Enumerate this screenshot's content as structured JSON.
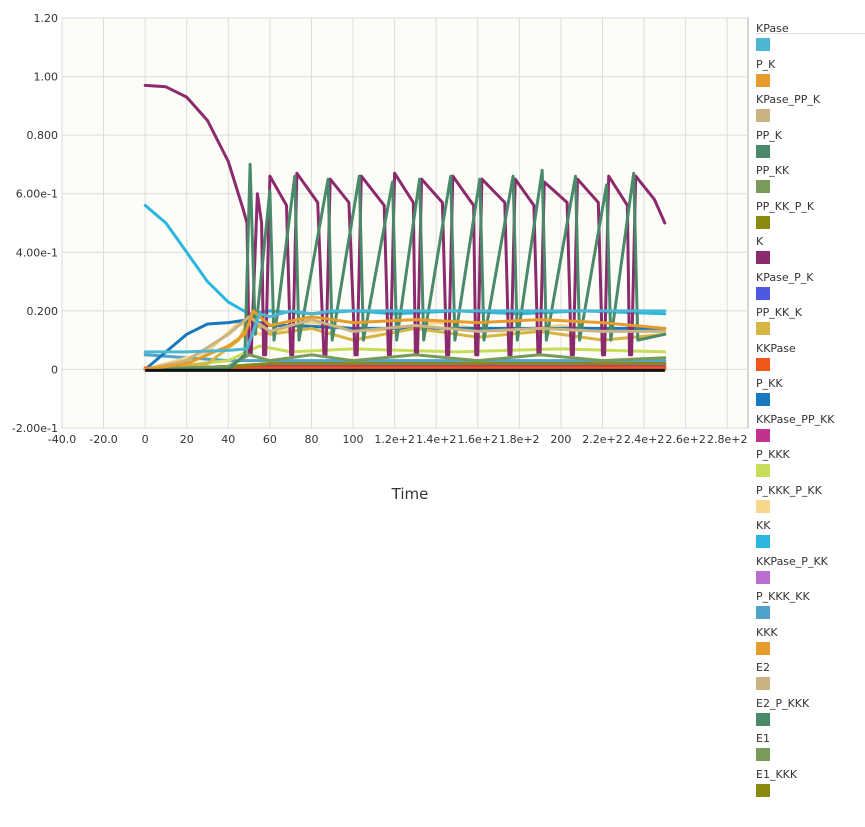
{
  "chart_data": {
    "type": "line",
    "xlabel": "Time",
    "ylabel": "",
    "xlim": [
      -40,
      290
    ],
    "ylim": [
      -0.2,
      1.2
    ],
    "grid": true,
    "legend_position": "right",
    "plot_background": "#fdfdf7",
    "xticks": [
      {
        "v": -40,
        "label": "-40.0"
      },
      {
        "v": -20,
        "label": "-20.0"
      },
      {
        "v": 0,
        "label": "0"
      },
      {
        "v": 20,
        "label": "20"
      },
      {
        "v": 40,
        "label": "40"
      },
      {
        "v": 60,
        "label": "60"
      },
      {
        "v": 80,
        "label": "80"
      },
      {
        "v": 100,
        "label": "100"
      },
      {
        "v": 120,
        "label": "1.2e+2"
      },
      {
        "v": 140,
        "label": "1.4e+2"
      },
      {
        "v": 160,
        "label": "1.6e+2"
      },
      {
        "v": 180,
        "label": "1.8e+2"
      },
      {
        "v": 200,
        "label": "200"
      },
      {
        "v": 220,
        "label": "2.2e+2"
      },
      {
        "v": 240,
        "label": "2.4e+2"
      },
      {
        "v": 260,
        "label": "2.6e+2"
      },
      {
        "v": 280,
        "label": "2.8e+2"
      }
    ],
    "yticks": [
      {
        "v": 1.2,
        "label": "1.20"
      },
      {
        "v": 1.0,
        "label": "1.00"
      },
      {
        "v": 0.8,
        "label": "0.800"
      },
      {
        "v": 0.6,
        "label": "6.00e-1"
      },
      {
        "v": 0.4,
        "label": "4.00e-1"
      },
      {
        "v": 0.2,
        "label": "0.200"
      },
      {
        "v": 0,
        "label": "0"
      },
      {
        "v": -0.2,
        "label": "-2.00e-1"
      }
    ],
    "peaks": [
      50.5,
      60,
      72,
      88,
      103,
      119,
      132,
      147,
      161,
      177,
      191,
      207,
      222,
      235
    ],
    "series": [
      {
        "name": "KPase",
        "color": "#4bb7d3",
        "values": [
          [
            0,
            0.06
          ],
          [
            20,
            0.06
          ],
          [
            40,
            0.065
          ],
          [
            49,
            0.07
          ],
          [
            55,
            0.19
          ],
          [
            60,
            0.18
          ],
          [
            70,
            0.2
          ],
          [
            80,
            0.19
          ],
          [
            90,
            0.2
          ],
          [
            100,
            0.2
          ],
          [
            120,
            0.2
          ],
          [
            150,
            0.2
          ],
          [
            180,
            0.2
          ],
          [
            210,
            0.2
          ],
          [
            250,
            0.2
          ]
        ]
      },
      {
        "name": "P_K",
        "color": "#e69c2a",
        "values": [
          [
            0,
            0
          ],
          [
            20,
            0.02
          ],
          [
            40,
            0.08
          ],
          [
            48,
            0.12
          ],
          [
            52,
            0.2
          ],
          [
            60,
            0.15
          ],
          [
            80,
            0.18
          ],
          [
            100,
            0.16
          ],
          [
            130,
            0.17
          ],
          [
            160,
            0.16
          ],
          [
            190,
            0.17
          ],
          [
            220,
            0.16
          ],
          [
            250,
            0.14
          ]
        ]
      },
      {
        "name": "KPase_PP_K",
        "color": "#c9b383",
        "values": [
          [
            0,
            0
          ],
          [
            20,
            0.03
          ],
          [
            40,
            0.12
          ],
          [
            50,
            0.18
          ],
          [
            60,
            0.13
          ],
          [
            80,
            0.17
          ],
          [
            100,
            0.13
          ],
          [
            130,
            0.15
          ],
          [
            160,
            0.13
          ],
          [
            190,
            0.14
          ],
          [
            220,
            0.13
          ],
          [
            250,
            0.13
          ]
        ]
      },
      {
        "name": "PP_K",
        "color": "#4a8a6a",
        "values": [
          [
            0,
            0
          ],
          [
            40,
            0
          ],
          [
            48,
            0.05
          ],
          [
            50.5,
            0.7
          ],
          [
            53,
            0.12
          ],
          [
            60,
            0.61
          ],
          [
            62,
            0.1
          ],
          [
            72,
            0.66
          ],
          [
            74,
            0.1
          ],
          [
            88,
            0.65
          ],
          [
            90,
            0.1
          ],
          [
            103,
            0.66
          ],
          [
            105,
            0.1
          ],
          [
            119,
            0.64
          ],
          [
            121,
            0.1
          ],
          [
            132,
            0.65
          ],
          [
            134,
            0.1
          ],
          [
            147,
            0.66
          ],
          [
            149,
            0.1
          ],
          [
            161,
            0.65
          ],
          [
            163,
            0.1
          ],
          [
            177,
            0.66
          ],
          [
            179,
            0.1
          ],
          [
            191,
            0.68
          ],
          [
            193,
            0.1
          ],
          [
            207,
            0.66
          ],
          [
            209,
            0.1
          ],
          [
            222,
            0.63
          ],
          [
            224,
            0.1
          ],
          [
            235,
            0.67
          ],
          [
            237,
            0.1
          ],
          [
            250,
            0.12
          ]
        ]
      },
      {
        "name": "PP_KK",
        "color": "#7a9a5a",
        "values": [
          [
            0,
            0
          ],
          [
            40,
            0.01
          ],
          [
            50,
            0.05
          ],
          [
            60,
            0.03
          ],
          [
            80,
            0.05
          ],
          [
            100,
            0.03
          ],
          [
            130,
            0.05
          ],
          [
            160,
            0.03
          ],
          [
            190,
            0.05
          ],
          [
            220,
            0.03
          ],
          [
            250,
            0.04
          ]
        ]
      },
      {
        "name": "PP_KK_P_K",
        "color": "#8a8a10",
        "values": [
          [
            0,
            0
          ],
          [
            40,
            0.01
          ],
          [
            60,
            0.02
          ],
          [
            100,
            0.02
          ],
          [
            150,
            0.02
          ],
          [
            200,
            0.02
          ],
          [
            250,
            0.02
          ]
        ]
      },
      {
        "name": "K",
        "color": "#8c2a6e",
        "values": [
          [
            0,
            0.97
          ],
          [
            10,
            0.965
          ],
          [
            20,
            0.93
          ],
          [
            30,
            0.85
          ],
          [
            40,
            0.71
          ],
          [
            47,
            0.55
          ],
          [
            49,
            0.5
          ],
          [
            50,
            0.05
          ],
          [
            51,
            0.05
          ],
          [
            54,
            0.6
          ],
          [
            56,
            0.5
          ],
          [
            57,
            0.05
          ],
          [
            58,
            0.05
          ],
          [
            60,
            0.66
          ],
          [
            68,
            0.56
          ],
          [
            70,
            0.05
          ],
          [
            71,
            0.05
          ],
          [
            73,
            0.67
          ],
          [
            83,
            0.57
          ],
          [
            86,
            0.05
          ],
          [
            87,
            0.05
          ],
          [
            89,
            0.65
          ],
          [
            98,
            0.57
          ],
          [
            101,
            0.05
          ],
          [
            102,
            0.05
          ],
          [
            104,
            0.66
          ],
          [
            115,
            0.56
          ],
          [
            117,
            0.05
          ],
          [
            118,
            0.05
          ],
          [
            120,
            0.67
          ],
          [
            129,
            0.57
          ],
          [
            130,
            0.05
          ],
          [
            131,
            0.05
          ],
          [
            133,
            0.65
          ],
          [
            143,
            0.57
          ],
          [
            145,
            0.05
          ],
          [
            146,
            0.05
          ],
          [
            148,
            0.66
          ],
          [
            158,
            0.56
          ],
          [
            159,
            0.05
          ],
          [
            160,
            0.05
          ],
          [
            162,
            0.65
          ],
          [
            173,
            0.57
          ],
          [
            175,
            0.05
          ],
          [
            176,
            0.05
          ],
          [
            178,
            0.65
          ],
          [
            187,
            0.56
          ],
          [
            189,
            0.05
          ],
          [
            190,
            0.05
          ],
          [
            192,
            0.64
          ],
          [
            203,
            0.57
          ],
          [
            205,
            0.05
          ],
          [
            206,
            0.05
          ],
          [
            208,
            0.65
          ],
          [
            218,
            0.57
          ],
          [
            220,
            0.05
          ],
          [
            221,
            0.05
          ],
          [
            223,
            0.66
          ],
          [
            232,
            0.56
          ],
          [
            233,
            0.05
          ],
          [
            234,
            0.05
          ],
          [
            236,
            0.66
          ],
          [
            245,
            0.58
          ],
          [
            250,
            0.5
          ]
        ]
      },
      {
        "name": "KPase_P_K",
        "color": "#4f58e0",
        "values": [
          [
            0,
            0
          ],
          [
            40,
            0.01
          ],
          [
            60,
            0.02
          ],
          [
            100,
            0.02
          ],
          [
            150,
            0.02
          ],
          [
            200,
            0.02
          ],
          [
            250,
            0.02
          ]
        ]
      },
      {
        "name": "PP_KK_K",
        "color": "#d6b642",
        "values": [
          [
            0,
            0
          ],
          [
            30,
            0.02
          ],
          [
            45,
            0.1
          ],
          [
            50,
            0.17
          ],
          [
            60,
            0.12
          ],
          [
            80,
            0.14
          ],
          [
            100,
            0.1
          ],
          [
            130,
            0.14
          ],
          [
            160,
            0.11
          ],
          [
            190,
            0.13
          ],
          [
            220,
            0.1
          ],
          [
            250,
            0.12
          ]
        ]
      },
      {
        "name": "KKPase",
        "color": "#f0581a",
        "values": [
          [
            0,
            0.005
          ],
          [
            100,
            0.005
          ],
          [
            200,
            0.005
          ],
          [
            250,
            0.005
          ]
        ]
      },
      {
        "name": "P_KK",
        "color": "#1a78c0",
        "values": [
          [
            0,
            0
          ],
          [
            10,
            0.06
          ],
          [
            20,
            0.12
          ],
          [
            30,
            0.155
          ],
          [
            40,
            0.16
          ],
          [
            50,
            0.17
          ],
          [
            60,
            0.15
          ],
          [
            70,
            0.15
          ],
          [
            100,
            0.14
          ],
          [
            130,
            0.14
          ],
          [
            160,
            0.14
          ],
          [
            190,
            0.14
          ],
          [
            220,
            0.14
          ],
          [
            250,
            0.14
          ]
        ]
      },
      {
        "name": "KKPase_PP_KK",
        "color": "#c0328e",
        "values": [
          [
            0,
            0
          ],
          [
            60,
            0.01
          ],
          [
            150,
            0.01
          ],
          [
            250,
            0.01
          ]
        ]
      },
      {
        "name": "P_KKK",
        "color": "#c8dc5a",
        "values": [
          [
            0,
            0
          ],
          [
            40,
            0.03
          ],
          [
            55,
            0.08
          ],
          [
            70,
            0.06
          ],
          [
            100,
            0.07
          ],
          [
            150,
            0.06
          ],
          [
            200,
            0.07
          ],
          [
            250,
            0.06
          ]
        ]
      },
      {
        "name": "P_KKK_P_KK",
        "color": "#f7d58a",
        "values": [
          [
            0,
            0
          ],
          [
            30,
            0.06
          ],
          [
            45,
            0.16
          ],
          [
            55,
            0.12
          ],
          [
            80,
            0.16
          ],
          [
            110,
            0.13
          ],
          [
            140,
            0.16
          ],
          [
            170,
            0.13
          ],
          [
            200,
            0.15
          ],
          [
            230,
            0.13
          ],
          [
            250,
            0.14
          ]
        ]
      },
      {
        "name": "KK",
        "color": "#2ab6de",
        "values": [
          [
            0,
            0.56
          ],
          [
            10,
            0.5
          ],
          [
            20,
            0.4
          ],
          [
            30,
            0.3
          ],
          [
            40,
            0.23
          ],
          [
            50,
            0.19
          ],
          [
            60,
            0.2
          ],
          [
            80,
            0.19
          ],
          [
            100,
            0.2
          ],
          [
            120,
            0.19
          ],
          [
            150,
            0.2
          ],
          [
            180,
            0.19
          ],
          [
            210,
            0.2
          ],
          [
            250,
            0.19
          ]
        ]
      },
      {
        "name": "KKPase_P_KK",
        "color": "#b96ecf",
        "values": [
          [
            0,
            0
          ],
          [
            60,
            0.005
          ],
          [
            250,
            0.005
          ]
        ]
      },
      {
        "name": "P_KKK_KK",
        "color": "#4fa3c8",
        "values": [
          [
            0,
            0.05
          ],
          [
            20,
            0.04
          ],
          [
            40,
            0.03
          ],
          [
            60,
            0.03
          ],
          [
            100,
            0.03
          ],
          [
            200,
            0.03
          ],
          [
            250,
            0.03
          ]
        ]
      },
      {
        "name": "KKK",
        "color": "#e69c2a",
        "values": [
          [
            0,
            0.005
          ],
          [
            100,
            0.005
          ],
          [
            250,
            0.005
          ]
        ]
      },
      {
        "name": "E2",
        "color": "#c9b383",
        "values": [
          [
            0,
            0.002
          ],
          [
            250,
            0.002
          ]
        ]
      },
      {
        "name": "E2_P_KKK",
        "color": "#4a8a6a",
        "values": [
          [
            0,
            0
          ],
          [
            50,
            0.002
          ],
          [
            250,
            0.002
          ]
        ]
      },
      {
        "name": "E1",
        "color": "#7a9a5a",
        "values": [
          [
            0,
            0.001
          ],
          [
            250,
            0.001
          ]
        ]
      },
      {
        "name": "E1_KKK",
        "color": "#8a8a10",
        "values": [
          [
            0,
            0
          ],
          [
            250,
            0
          ]
        ]
      }
    ]
  }
}
